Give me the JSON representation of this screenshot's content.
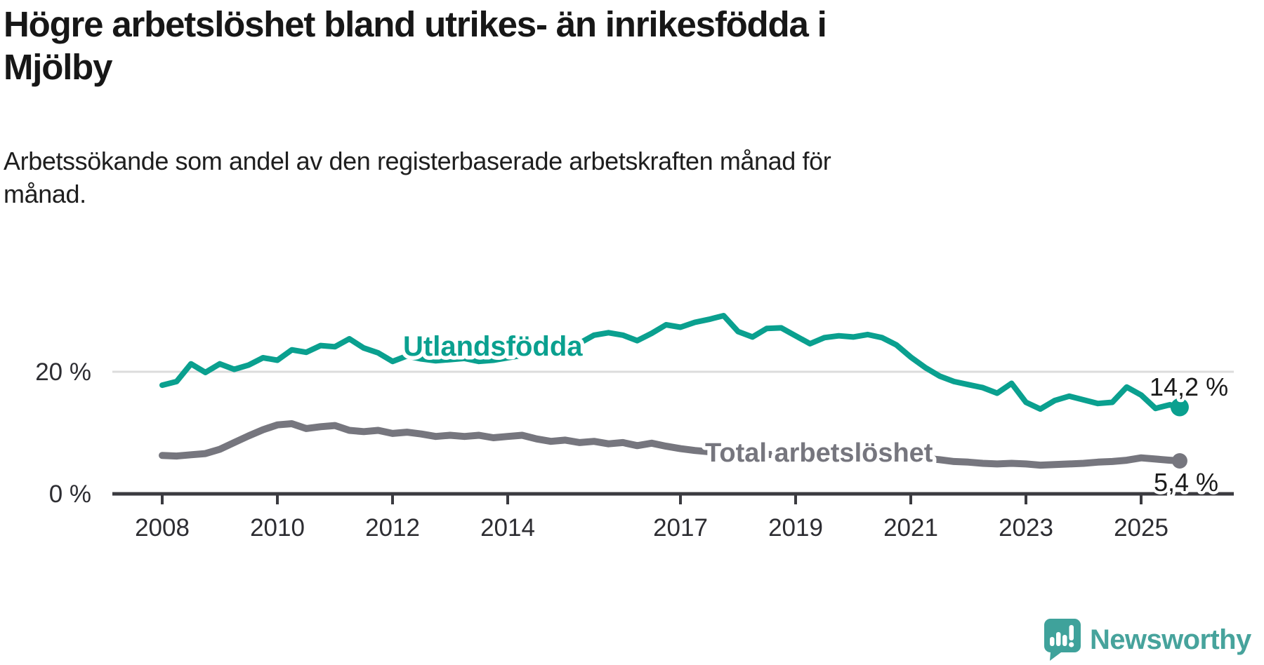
{
  "page": {
    "title": "Högre arbetslöshet bland utrikes- än inrikesfödda i Mjölby",
    "title_lines": [
      "Högre arbetslöshet bland utrikes- än inrikesfödda i",
      "Mjölby"
    ],
    "subtitle": "Arbetssökande som andel av den registerbaserade arbetskraften månad för månad.",
    "subtitle_lines": [
      "Arbetssökande som andel av den registerbaserade arbetskraften månad för",
      "månad."
    ]
  },
  "colors": {
    "foreign_born_line": "#0aa08f",
    "total_line": "#76767e",
    "gridline": "#dcdcdc",
    "axis": "#3b3b40",
    "tick_text": "#2d2d32",
    "value_text": "#1a1a1a",
    "logo_teal": "#47a39c"
  },
  "chart_data": {
    "type": "line",
    "unit": "%",
    "x_axis": {
      "tick_years": [
        2008,
        2010,
        2012,
        2014,
        2017,
        2019,
        2021,
        2023,
        2025
      ]
    },
    "y_axis": {
      "tick_values": [
        0,
        20
      ],
      "tick_labels": [
        "0 %",
        "20 %"
      ],
      "ylim": [
        0,
        31
      ],
      "gridlines": [
        20
      ]
    },
    "x": [
      2008.0,
      2008.25,
      2008.5,
      2008.75,
      2009.0,
      2009.25,
      2009.5,
      2009.75,
      2010.0,
      2010.25,
      2010.5,
      2010.75,
      2011.0,
      2011.25,
      2011.5,
      2011.75,
      2012.0,
      2012.25,
      2012.5,
      2012.75,
      2013.0,
      2013.25,
      2013.5,
      2013.75,
      2014.0,
      2014.25,
      2014.5,
      2014.75,
      2015.0,
      2015.25,
      2015.5,
      2015.75,
      2016.0,
      2016.25,
      2016.5,
      2016.75,
      2017.0,
      2017.25,
      2017.5,
      2017.75,
      2018.0,
      2018.25,
      2018.5,
      2018.75,
      2019.0,
      2019.25,
      2019.5,
      2019.75,
      2020.0,
      2020.25,
      2020.5,
      2020.75,
      2021.0,
      2021.25,
      2021.5,
      2021.75,
      2022.0,
      2022.25,
      2022.5,
      2022.75,
      2023.0,
      2023.25,
      2023.5,
      2023.75,
      2024.0,
      2024.25,
      2024.5,
      2024.75,
      2025.0,
      2025.25,
      2025.5,
      2025.67
    ],
    "series": [
      {
        "name": "Utlandsfödda",
        "color": "#0aa08f",
        "end_value": 14.2,
        "end_label": "14,2 %",
        "values": [
          17.8,
          18.4,
          21.3,
          19.9,
          21.3,
          20.4,
          21.1,
          22.3,
          21.9,
          23.6,
          23.2,
          24.3,
          24.1,
          25.4,
          23.9,
          23.1,
          21.7,
          22.6,
          22.1,
          21.8,
          22.0,
          22.2,
          21.7,
          21.9,
          22.3,
          22.7,
          23.1,
          23.6,
          24.1,
          24.7,
          26.0,
          26.4,
          26.0,
          25.1,
          26.3,
          27.7,
          27.3,
          28.1,
          28.6,
          29.2,
          26.6,
          25.7,
          27.1,
          27.2,
          25.9,
          24.6,
          25.6,
          25.9,
          25.7,
          26.1,
          25.6,
          24.4,
          22.4,
          20.7,
          19.3,
          18.4,
          17.9,
          17.4,
          16.5,
          18.1,
          15.0,
          13.9,
          15.3,
          16.0,
          15.4,
          14.8,
          15.0,
          17.5,
          16.2,
          14.0,
          14.6,
          14.2
        ]
      },
      {
        "name": "Total arbetslöshet",
        "color": "#76767e",
        "end_value": 5.4,
        "end_label": "5,4 %",
        "values": [
          6.3,
          6.2,
          6.4,
          6.6,
          7.3,
          8.4,
          9.5,
          10.5,
          11.3,
          11.5,
          10.7,
          11.0,
          11.2,
          10.4,
          10.2,
          10.4,
          9.9,
          10.1,
          9.8,
          9.4,
          9.6,
          9.4,
          9.6,
          9.2,
          9.4,
          9.6,
          9.0,
          8.6,
          8.8,
          8.4,
          8.6,
          8.2,
          8.4,
          7.9,
          8.3,
          7.8,
          7.4,
          7.1,
          6.9,
          6.7,
          6.6,
          6.4,
          6.5,
          6.3,
          6.2,
          6.1,
          6.0,
          6.1,
          6.3,
          6.9,
          6.7,
          6.4,
          6.1,
          5.8,
          5.6,
          5.3,
          5.2,
          5.0,
          4.9,
          5.0,
          4.9,
          4.7,
          4.8,
          4.9,
          5.0,
          5.2,
          5.3,
          5.5,
          5.9,
          5.7,
          5.5,
          5.4
        ]
      }
    ]
  },
  "logo": {
    "brand": "Newsworthy",
    "icon": "newsworthy-speech-bubble-bars-icon"
  }
}
